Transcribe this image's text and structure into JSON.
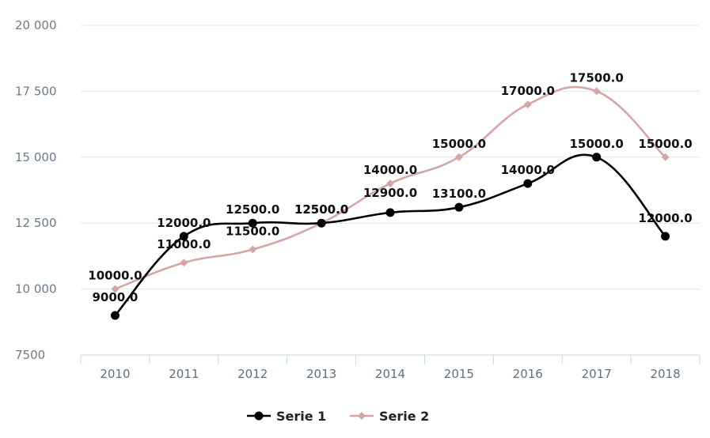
{
  "chart_data": {
    "type": "line",
    "categories": [
      "2010",
      "2011",
      "2012",
      "2013",
      "2014",
      "2015",
      "2016",
      "2017",
      "2018"
    ],
    "series": [
      {
        "name": "Serie 1",
        "values": [
          9000,
          12000,
          12500,
          12500,
          12900,
          13100,
          14000,
          15000,
          12000
        ],
        "color": "#000000",
        "marker": "circle"
      },
      {
        "name": "Serie 2",
        "values": [
          10000,
          11000,
          11500,
          12500,
          14000,
          15000,
          17000,
          17500,
          15000
        ],
        "color": "#d6a5a5",
        "marker": "diamond"
      }
    ],
    "value_labels": {
      "Serie 1": [
        "9000.0",
        "12000.0",
        "12500.0",
        "12500.0",
        "12900.0",
        "13100.0",
        "14000.0",
        "15000.0",
        "12000.0"
      ],
      "Serie 2": [
        "10000.0",
        "11000.0",
        "11500.0",
        "12500.0",
        "14000.0",
        "15000.0",
        "17000.0",
        "17500.0",
        "15000.0"
      ]
    },
    "ylim": [
      7500,
      20000
    ],
    "yticks": [
      7500,
      10000,
      12500,
      15000,
      17500,
      20000
    ],
    "ytick_labels": [
      "7500",
      "10 000",
      "12 500",
      "15 000",
      "17 500",
      "20 000"
    ],
    "grid": true,
    "legend": "bottom-center",
    "curve": "smooth",
    "title": "",
    "xlabel": "",
    "ylabel": ""
  }
}
